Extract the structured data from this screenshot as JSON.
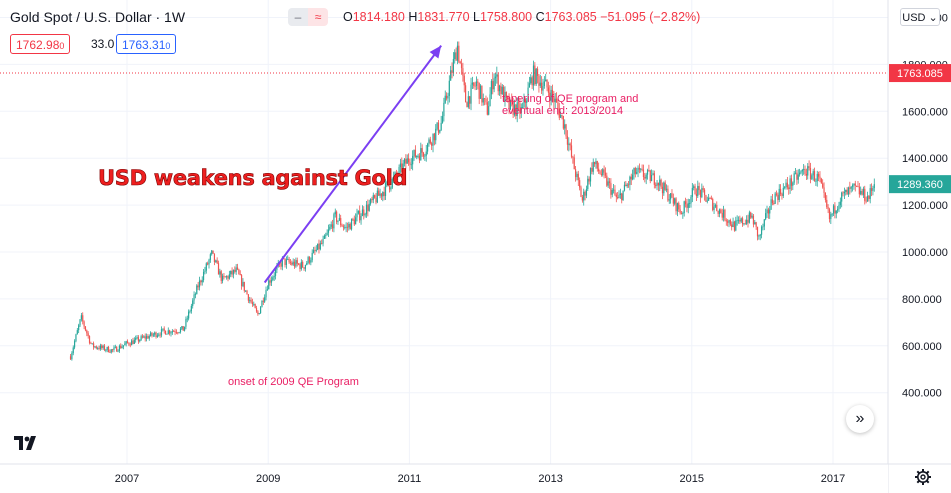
{
  "header": {
    "symbol_title": "Gold Spot / U.S. Dollar · 1W",
    "pill_minus": "‒",
    "pill_wave": "≈",
    "ohlc": {
      "o_label": "O",
      "o_value": "1814.180",
      "h_label": "H",
      "h_value": "1831.770",
      "l_label": "L",
      "l_value": "1758.800",
      "c_label": "C",
      "c_value": "1763.085",
      "change": "−51.095 (−2.82%)"
    },
    "bid": "1762.98",
    "bid_sub": "0",
    "spread": "33.0",
    "ask": "1763.31",
    "ask_sub": "0",
    "currency": "USD ⌄"
  },
  "colors": {
    "up": "#26a69a",
    "down": "#ef5350",
    "price_line": "#f23645",
    "arrow": "#7b3ff2",
    "annotation": "#e91e63",
    "headline": "#ee1f1f",
    "grid": "#f0f3fa",
    "last_label_bg": "#26a69a"
  },
  "chart_data": {
    "type": "candlestick",
    "title": "Gold Spot / U.S. Dollar · 1W",
    "ylim": [
      300,
      2100
    ],
    "xlim": [
      2006.0,
      2017.6
    ],
    "y_ticks": [
      400,
      600,
      800,
      1000,
      1200,
      1400,
      1600,
      1800,
      2000
    ],
    "y_tick_labels": [
      "400.000",
      "600.000",
      "800.000",
      "1000.000",
      "1200.000",
      "1400.000",
      "1600.000",
      "1800.000",
      "2000.000"
    ],
    "top_partial_label": "2",
    "x_ticks": [
      2007,
      2009,
      2011,
      2013,
      2015,
      2017
    ],
    "x_tick_labels": [
      "2007",
      "2009",
      "2011",
      "2013",
      "2015",
      "2017"
    ],
    "price_line": {
      "value": 1763.085,
      "label": "1763.085"
    },
    "last_value": {
      "value": 1289.36,
      "label": "1289.360"
    },
    "grid": true,
    "key_points": [
      {
        "x": 2006.2,
        "y": 555
      },
      {
        "x": 2006.35,
        "y": 720
      },
      {
        "x": 2006.5,
        "y": 600
      },
      {
        "x": 2006.8,
        "y": 580
      },
      {
        "x": 2007.0,
        "y": 610
      },
      {
        "x": 2007.5,
        "y": 660
      },
      {
        "x": 2007.8,
        "y": 670
      },
      {
        "x": 2008.0,
        "y": 850
      },
      {
        "x": 2008.2,
        "y": 990
      },
      {
        "x": 2008.35,
        "y": 880
      },
      {
        "x": 2008.55,
        "y": 920
      },
      {
        "x": 2008.7,
        "y": 820
      },
      {
        "x": 2008.85,
        "y": 730
      },
      {
        "x": 2009.0,
        "y": 870
      },
      {
        "x": 2009.2,
        "y": 960
      },
      {
        "x": 2009.5,
        "y": 940
      },
      {
        "x": 2009.8,
        "y": 1050
      },
      {
        "x": 2009.95,
        "y": 1150
      },
      {
        "x": 2010.1,
        "y": 1100
      },
      {
        "x": 2010.5,
        "y": 1220
      },
      {
        "x": 2010.75,
        "y": 1300
      },
      {
        "x": 2011.0,
        "y": 1400
      },
      {
        "x": 2011.2,
        "y": 1430
      },
      {
        "x": 2011.45,
        "y": 1550
      },
      {
        "x": 2011.62,
        "y": 1800
      },
      {
        "x": 2011.68,
        "y": 1880
      },
      {
        "x": 2011.8,
        "y": 1640
      },
      {
        "x": 2011.95,
        "y": 1720
      },
      {
        "x": 2012.1,
        "y": 1600
      },
      {
        "x": 2012.2,
        "y": 1760
      },
      {
        "x": 2012.4,
        "y": 1620
      },
      {
        "x": 2012.6,
        "y": 1600
      },
      {
        "x": 2012.75,
        "y": 1760
      },
      {
        "x": 2012.95,
        "y": 1700
      },
      {
        "x": 2013.05,
        "y": 1650
      },
      {
        "x": 2013.2,
        "y": 1540
      },
      {
        "x": 2013.3,
        "y": 1400
      },
      {
        "x": 2013.45,
        "y": 1220
      },
      {
        "x": 2013.6,
        "y": 1380
      },
      {
        "x": 2013.75,
        "y": 1320
      },
      {
        "x": 2013.95,
        "y": 1220
      },
      {
        "x": 2014.2,
        "y": 1340
      },
      {
        "x": 2014.5,
        "y": 1310
      },
      {
        "x": 2014.85,
        "y": 1170
      },
      {
        "x": 2015.05,
        "y": 1270
      },
      {
        "x": 2015.35,
        "y": 1190
      },
      {
        "x": 2015.6,
        "y": 1110
      },
      {
        "x": 2015.85,
        "y": 1150
      },
      {
        "x": 2015.95,
        "y": 1060
      },
      {
        "x": 2016.15,
        "y": 1230
      },
      {
        "x": 2016.35,
        "y": 1280
      },
      {
        "x": 2016.6,
        "y": 1350
      },
      {
        "x": 2016.8,
        "y": 1310
      },
      {
        "x": 2016.95,
        "y": 1140
      },
      {
        "x": 2017.1,
        "y": 1230
      },
      {
        "x": 2017.3,
        "y": 1270
      },
      {
        "x": 2017.5,
        "y": 1230
      },
      {
        "x": 2017.58,
        "y": 1289.36
      }
    ],
    "annotations": {
      "headline": "USD weakens against Gold",
      "qe_label": "onset of 2009 QE Program",
      "taper_label_line1": "tapering of QE program and",
      "taper_label_line2": "eventual end: 2013/2014",
      "arrow": {
        "from": {
          "x": 2008.95,
          "y": 870
        },
        "to": {
          "x": 2011.45,
          "y": 1880
        }
      }
    }
  }
}
